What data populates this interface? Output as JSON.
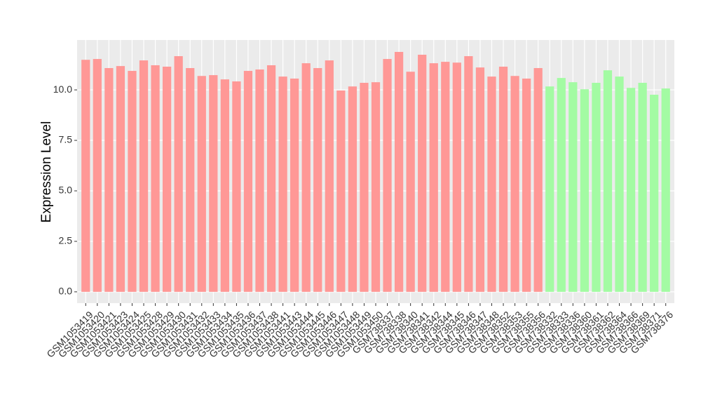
{
  "chart_data": {
    "type": "bar",
    "y_label": "Expression Level",
    "categories": [
      "GSM1053419",
      "GSM1053420",
      "GSM1053421",
      "GSM1053423",
      "GSM1053424",
      "GSM1053425",
      "GSM1053428",
      "GSM1053429",
      "GSM1053430",
      "GSM1053431",
      "GSM1053432",
      "GSM1053433",
      "GSM1053434",
      "GSM1053435",
      "GSM1053436",
      "GSM1053437",
      "GSM1053438",
      "GSM1053441",
      "GSM1053443",
      "GSM1053444",
      "GSM1053445",
      "GSM1053446",
      "GSM1053447",
      "GSM1053448",
      "GSM1053449",
      "GSM1053450",
      "GSM738337",
      "GSM738338",
      "GSM738340",
      "GSM738341",
      "GSM738342",
      "GSM738344",
      "GSM738345",
      "GSM738346",
      "GSM738347",
      "GSM738348",
      "GSM738352",
      "GSM738353",
      "GSM738355",
      "GSM738356",
      "GSM738332",
      "GSM738333",
      "GSM738336",
      "GSM738360",
      "GSM738361",
      "GSM738362",
      "GSM738364",
      "GSM738366",
      "GSM738369",
      "GSM738371",
      "GSM738376"
    ],
    "values": [
      11.49,
      11.53,
      11.08,
      11.18,
      10.94,
      11.46,
      11.22,
      11.15,
      11.67,
      11.08,
      10.69,
      10.73,
      10.52,
      10.42,
      10.94,
      11.01,
      11.22,
      10.66,
      10.56,
      11.32,
      11.08,
      11.46,
      9.97,
      10.17,
      10.35,
      10.38,
      11.53,
      11.88,
      10.9,
      11.74,
      11.32,
      11.39,
      11.35,
      11.67,
      11.11,
      10.66,
      11.15,
      10.69,
      10.56,
      11.08,
      10.17,
      10.59,
      10.38,
      10.03,
      10.35,
      10.97,
      10.66,
      10.1,
      10.35,
      9.76,
      10.07
    ],
    "colors": [
      "#ff9896",
      "#ff9896",
      "#ff9896",
      "#ff9896",
      "#ff9896",
      "#ff9896",
      "#ff9896",
      "#ff9896",
      "#ff9896",
      "#ff9896",
      "#ff9896",
      "#ff9896",
      "#ff9896",
      "#ff9896",
      "#ff9896",
      "#ff9896",
      "#ff9896",
      "#ff9896",
      "#ff9896",
      "#ff9896",
      "#ff9896",
      "#ff9896",
      "#ff9896",
      "#ff9896",
      "#ff9896",
      "#ff9896",
      "#ff9896",
      "#ff9896",
      "#ff9896",
      "#ff9896",
      "#ff9896",
      "#ff9896",
      "#ff9896",
      "#ff9896",
      "#ff9896",
      "#ff9896",
      "#ff9896",
      "#ff9896",
      "#ff9896",
      "#ff9896",
      "#a3fba3",
      "#a3fba3",
      "#a3fba3",
      "#a3fba3",
      "#a3fba3",
      "#a3fba3",
      "#a3fba3",
      "#a3fba3",
      "#a3fba3",
      "#a3fba3",
      "#a3fba3"
    ],
    "ylim": [
      -0.56,
      12.47
    ],
    "yticks": [
      {
        "value": 0,
        "label": "0.0"
      },
      2.5,
      {
        "value": 5,
        "label": "5.0"
      },
      7.5,
      {
        "value": 10,
        "label": "10.0"
      }
    ],
    "grid": true
  }
}
